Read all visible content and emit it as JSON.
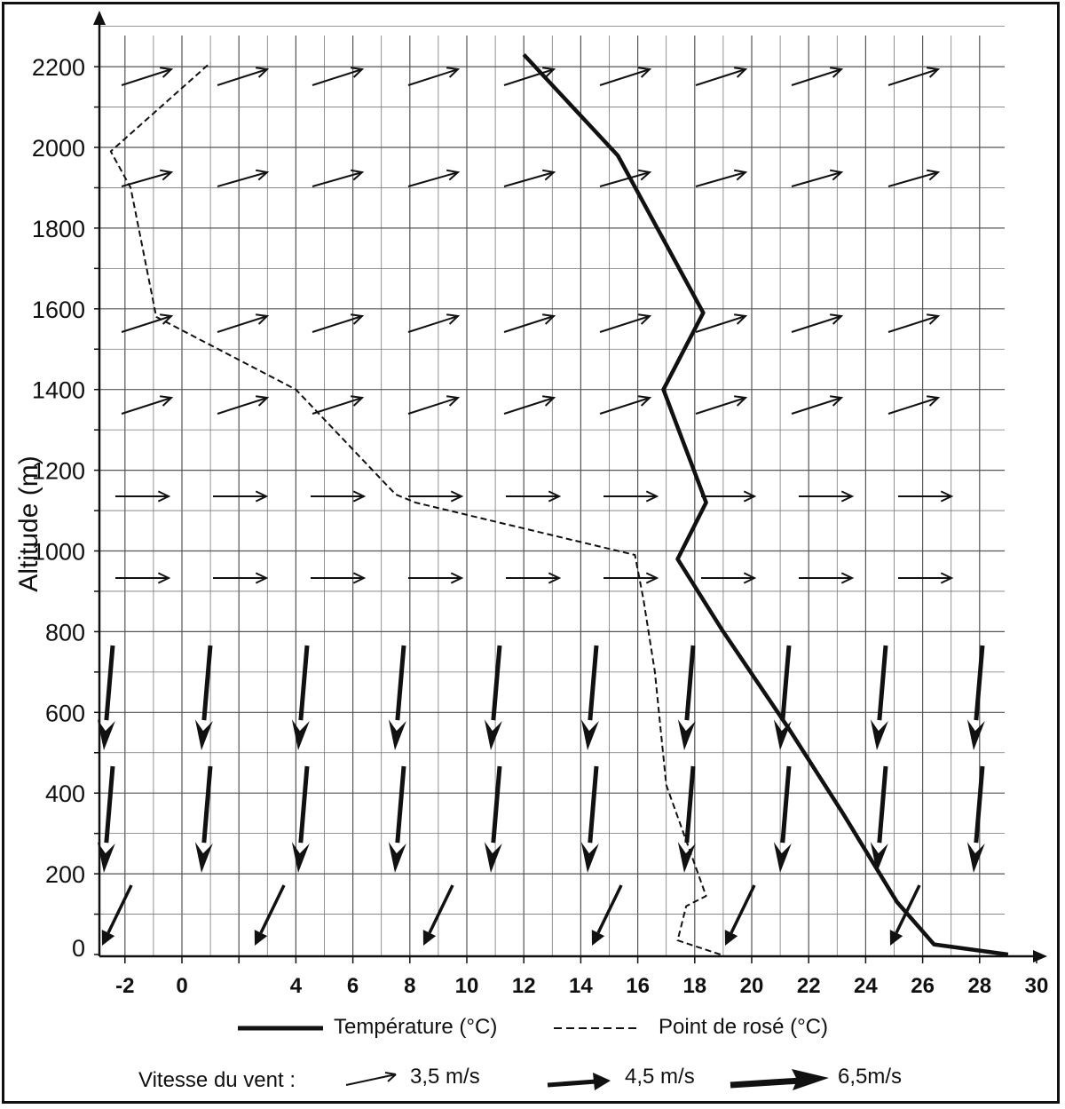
{
  "chart_data": {
    "type": "line",
    "title": "",
    "ylabel": "Altitude (m)",
    "xlabel": "",
    "xlim": [
      -3,
      31
    ],
    "ylim": [
      0,
      2350
    ],
    "x_ticks": [
      "-2",
      "0",
      "4",
      "6",
      "8",
      "10",
      "12",
      "14",
      "16",
      "18",
      "20",
      "22",
      "24",
      "26",
      "28",
      "30"
    ],
    "y_ticks": [
      "0",
      "200",
      "400",
      "600",
      "800",
      "1000",
      "1200",
      "1400",
      "1600",
      "1800",
      "2000",
      "2200"
    ],
    "grid": true,
    "series": [
      {
        "name": "Température (°C)",
        "style": "solid",
        "points": [
          [
            29.0,
            0
          ],
          [
            26.4,
            25
          ],
          [
            25.1,
            130
          ],
          [
            23.2,
            350
          ],
          [
            21.3,
            560
          ],
          [
            19.0,
            800
          ],
          [
            17.4,
            980
          ],
          [
            18.4,
            1120
          ],
          [
            16.9,
            1400
          ],
          [
            18.3,
            1590
          ],
          [
            15.3,
            1980
          ],
          [
            12.0,
            2230
          ]
        ]
      },
      {
        "name": "Point de rosé (°C)",
        "style": "dashed",
        "points": [
          [
            18.9,
            0
          ],
          [
            17.4,
            35
          ],
          [
            17.7,
            120
          ],
          [
            18.4,
            145
          ],
          [
            17.0,
            420
          ],
          [
            16.6,
            700
          ],
          [
            16.2,
            880
          ],
          [
            15.9,
            990
          ],
          [
            8.2,
            1120
          ],
          [
            7.5,
            1140
          ],
          [
            4.0,
            1400
          ],
          [
            -0.9,
            1580
          ],
          [
            -1.8,
            1900
          ],
          [
            -2.5,
            1990
          ],
          [
            1.0,
            2210
          ]
        ]
      }
    ],
    "wind_rows": [
      {
        "altitude": 2190,
        "speed": "3,5 m/s",
        "direction": "slightly-upward-right"
      },
      {
        "altitude": 1930,
        "speed": "3,5 m/s",
        "direction": "slightly-upward-right"
      },
      {
        "altitude": 1570,
        "speed": "3,5 m/s",
        "direction": "slightly-upward-right"
      },
      {
        "altitude": 1360,
        "speed": "3,5 m/s",
        "direction": "slightly-upward-right"
      },
      {
        "altitude": 1130,
        "speed": "3,5 m/s",
        "direction": "right"
      },
      {
        "altitude": 930,
        "speed": "3,5 m/s",
        "direction": "right"
      },
      {
        "altitude": 640,
        "speed": "6,5m/s",
        "direction": "down"
      },
      {
        "altitude": 340,
        "speed": "6,5m/s",
        "direction": "down"
      },
      {
        "altitude": 70,
        "speed": "4,5 m/s",
        "direction": "down-left"
      }
    ]
  },
  "legend": {
    "temperature_label": "Température (°C)",
    "dew_label": "Point de rosé (°C)",
    "wind_title": "Vitesse du vent :",
    "speed_small": "3,5 m/s",
    "speed_medium": "4,5 m/s",
    "speed_large": "6,5m/s"
  }
}
